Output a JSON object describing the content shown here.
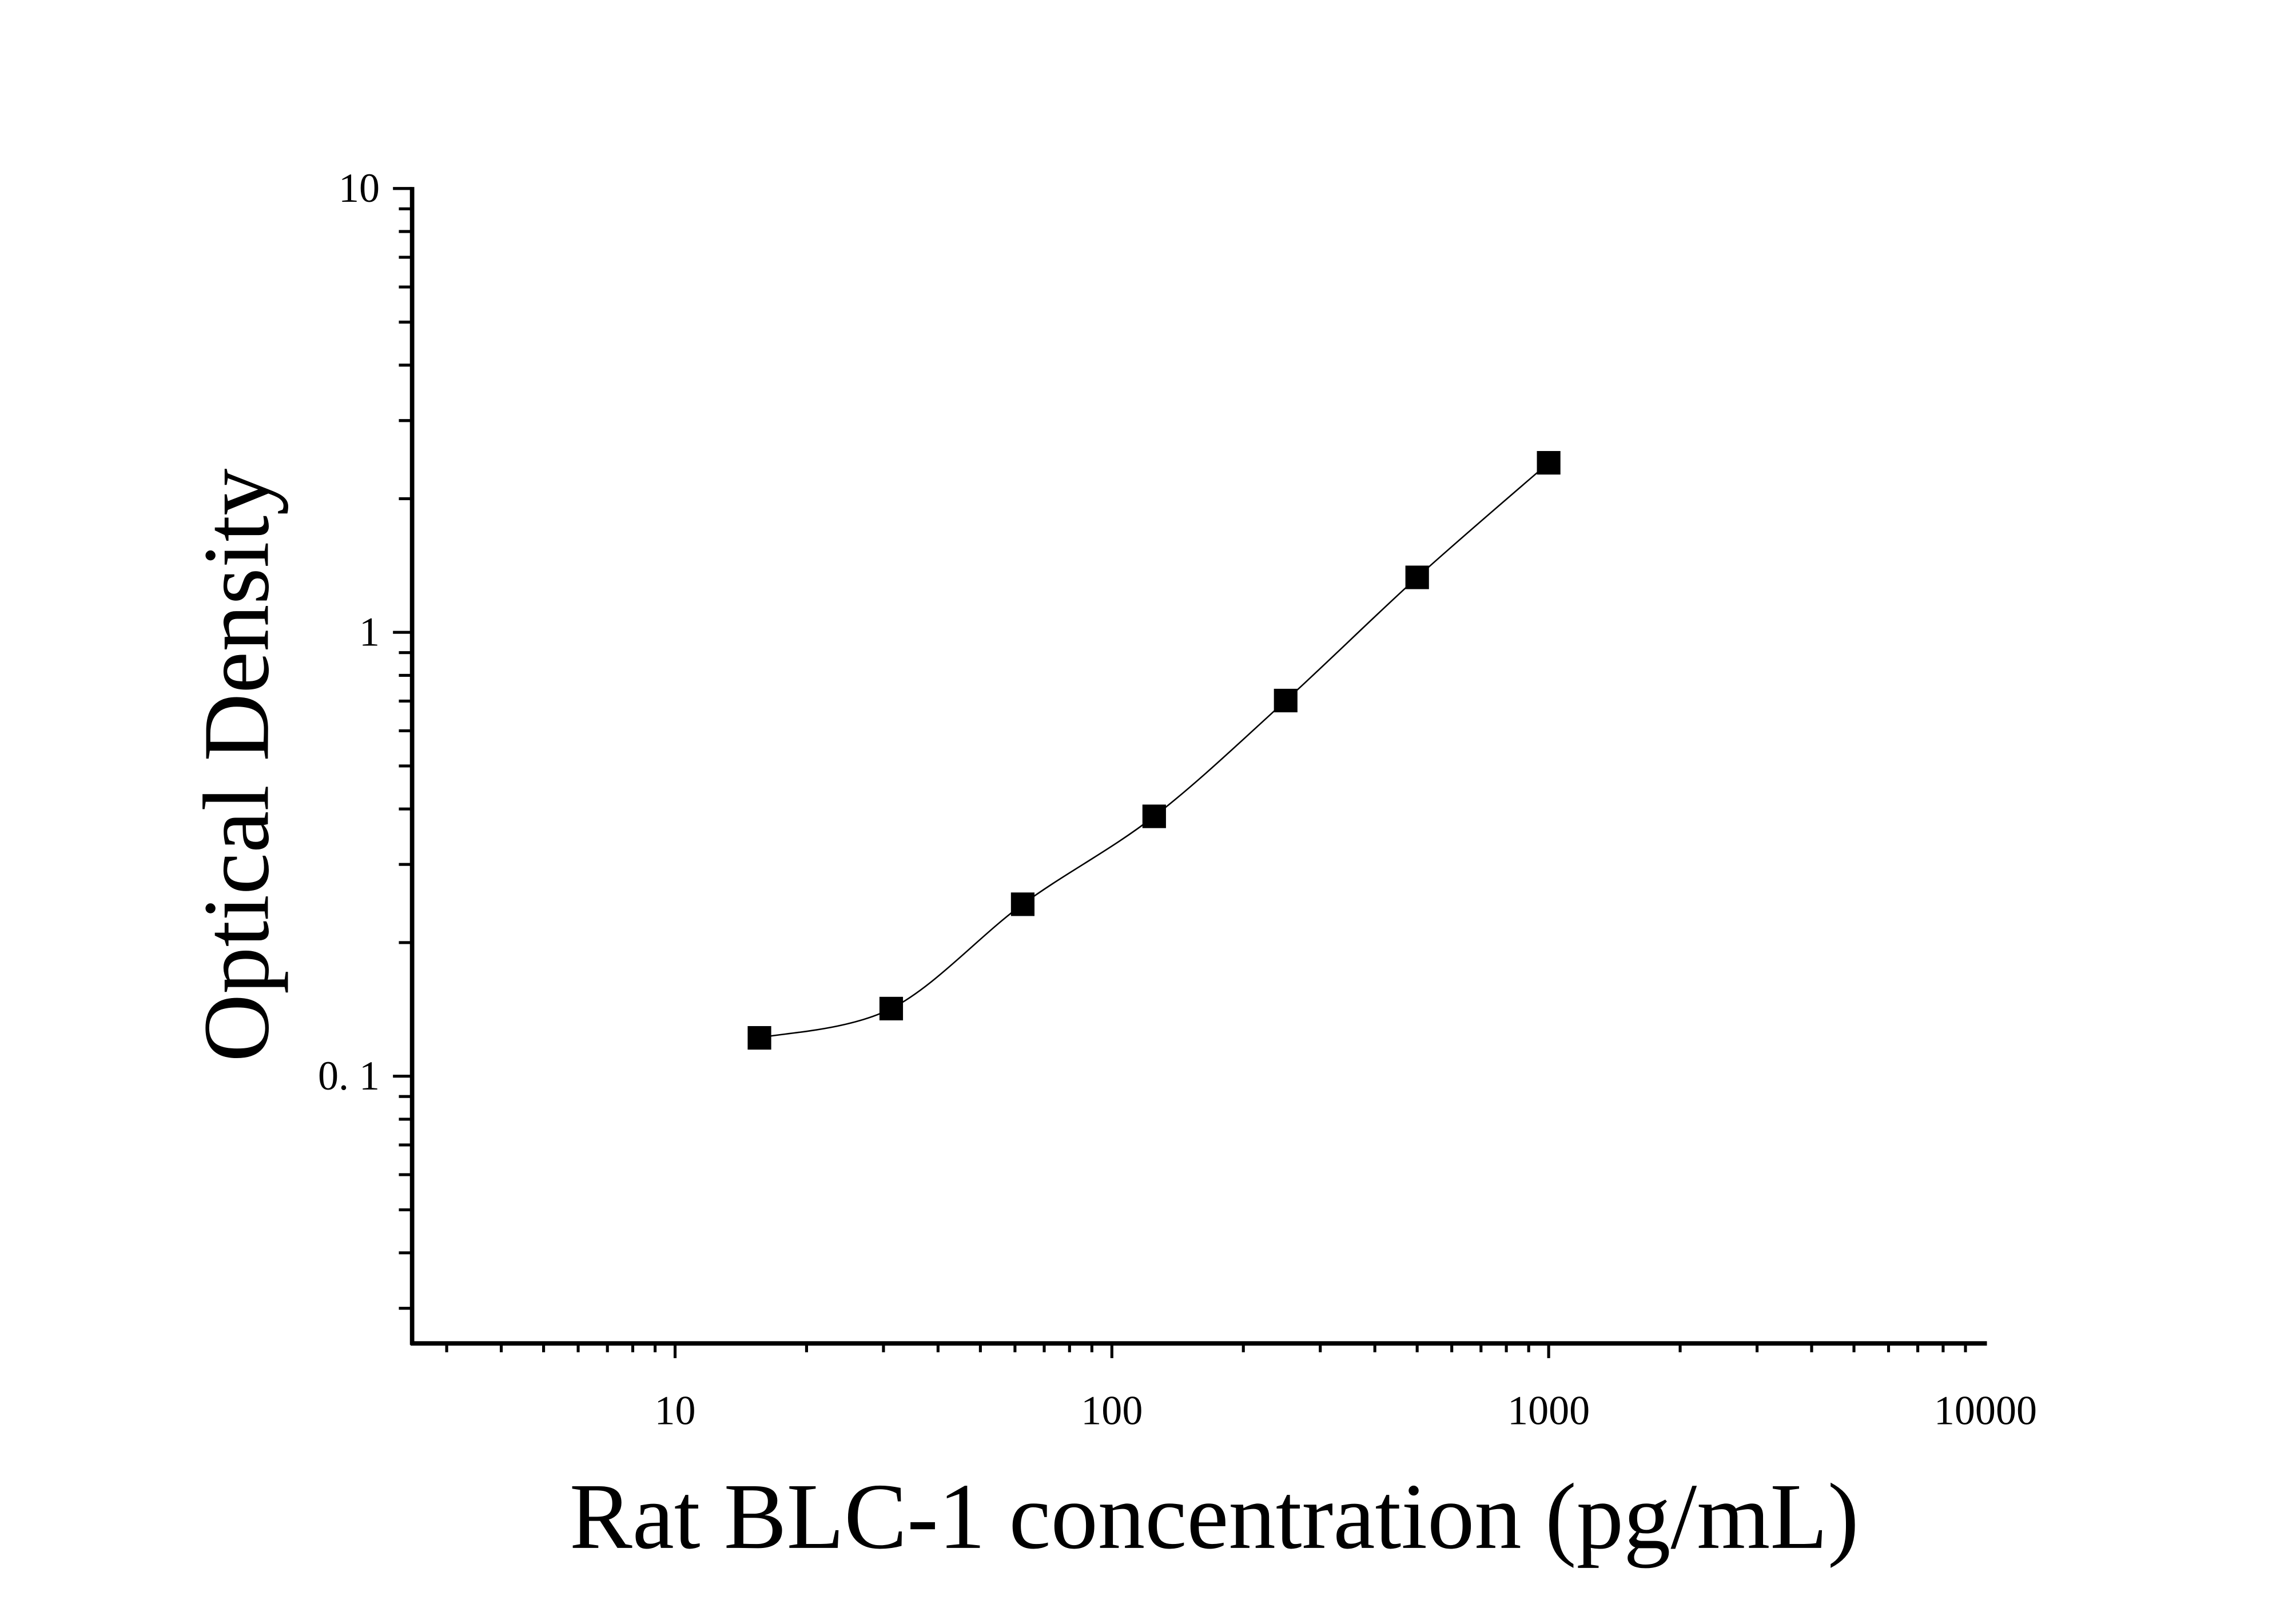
{
  "chart_data": {
    "type": "scatter",
    "title": "",
    "xlabel": "Rat BLC-1 concentration (pg/mL)",
    "ylabel": "Optical Density",
    "x_scale": "log",
    "y_scale": "log",
    "xlim": [
      2.5,
      10000
    ],
    "ylim": [
      0.025,
      10
    ],
    "x_ticks": [
      10,
      100,
      1000,
      10000
    ],
    "x_tick_labels": [
      "10",
      "100",
      "1000",
      "10000"
    ],
    "y_ticks": [
      0.1,
      1,
      10
    ],
    "y_tick_labels": [
      "0. 1",
      "1",
      "10"
    ],
    "grid": false,
    "series": [
      {
        "marker": "square",
        "color": "#000000",
        "fit_line": true,
        "x": [
          15.6,
          31.25,
          62.5,
          125,
          250,
          500,
          1000
        ],
        "y": [
          0.122,
          0.142,
          0.244,
          0.385,
          0.702,
          1.33,
          2.41
        ]
      }
    ]
  }
}
